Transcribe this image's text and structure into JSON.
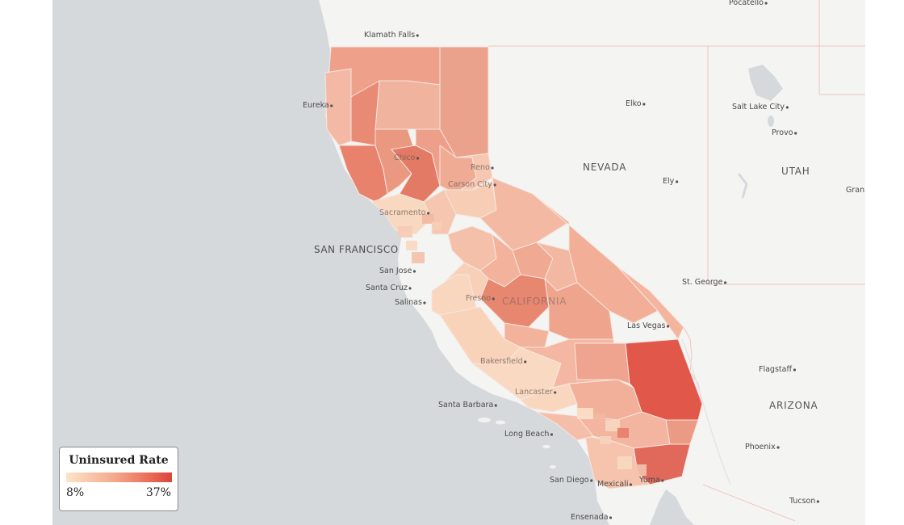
{
  "legend": {
    "title": "Uninsured Rate",
    "min_label": "8%",
    "max_label": "37%",
    "min_value": 8,
    "max_value": 37,
    "color_low": "#fde4c8",
    "color_high": "#d9453a"
  },
  "states": [
    "NEVADA",
    "UTAH",
    "ARIZONA",
    "CALIFORNIA"
  ],
  "cities": [
    "Pocatello",
    "Klamath Falls",
    "Eureka",
    "Elko",
    "Salt Lake City",
    "Provo",
    "Reno",
    "Carson City",
    "Chico",
    "Sacramento",
    "Ely",
    "Gran",
    "SAN FRANCISCO",
    "San Jose",
    "Santa Cruz",
    "Salinas",
    "Fresno",
    "St. George",
    "Las Vegas",
    "Bakersfield",
    "Flagstaff",
    "Lancaster",
    "Santa Barbara",
    "Long Beach",
    "Phoenix",
    "San Diego",
    "Mexicali",
    "Yuma",
    "Tucson",
    "Ensenada"
  ]
}
